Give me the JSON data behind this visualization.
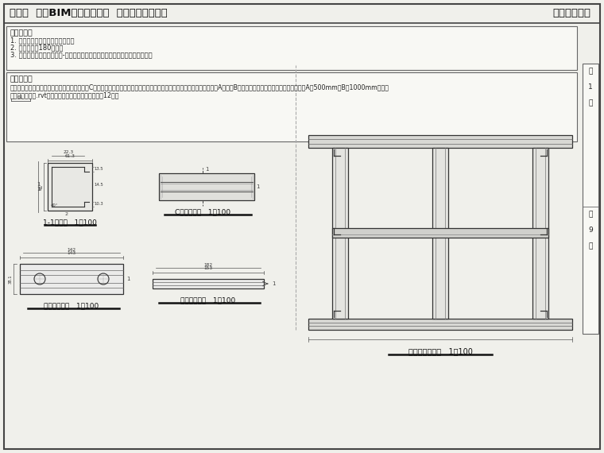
{
  "title_left": "第九期  全国BIM技能等级考试  二级（设备）试题",
  "title_right": "中国图学学会",
  "bg_color": "#f0f0eb",
  "req_title": "考试要求：",
  "req1": "1. 考试方式：计算机操作、闭卷。",
  "req2": "2. 考试时间：180分钟。",
  "req3": "3. 新建文件夹，以准考证号-姓名命名，用于存放本次考试中生成的全部文件。",
  "parts_title": "试题部分：",
  "part1_line1": "一、右图为门型支架模型主视图，该支架由三代C型钢和两个钢底座组成，根据给定尺寸件图纸，创建支架模型，并设定参满A与距满B（见门型支架钢视图）为可变参数。管径A为500mm，B为1000mm。请将",
  "part1_line2": "结果以门型支架.rvt为文件名保存在考生文件夹中。（12分）",
  "label_11_view": "1-1断面图   1：100",
  "label_c_view": "C型钢正视图   1：100",
  "label_bottom_plan": "钢底座俯视图   1：100",
  "label_bottom_side": "钢底座侧视图   1：100",
  "label_main_view": "门型支架主视图   1：100",
  "page_top": "第",
  "page_num": "1",
  "page_bottom": "页",
  "total_top": "共",
  "total_num": "9",
  "total_bottom": "页"
}
